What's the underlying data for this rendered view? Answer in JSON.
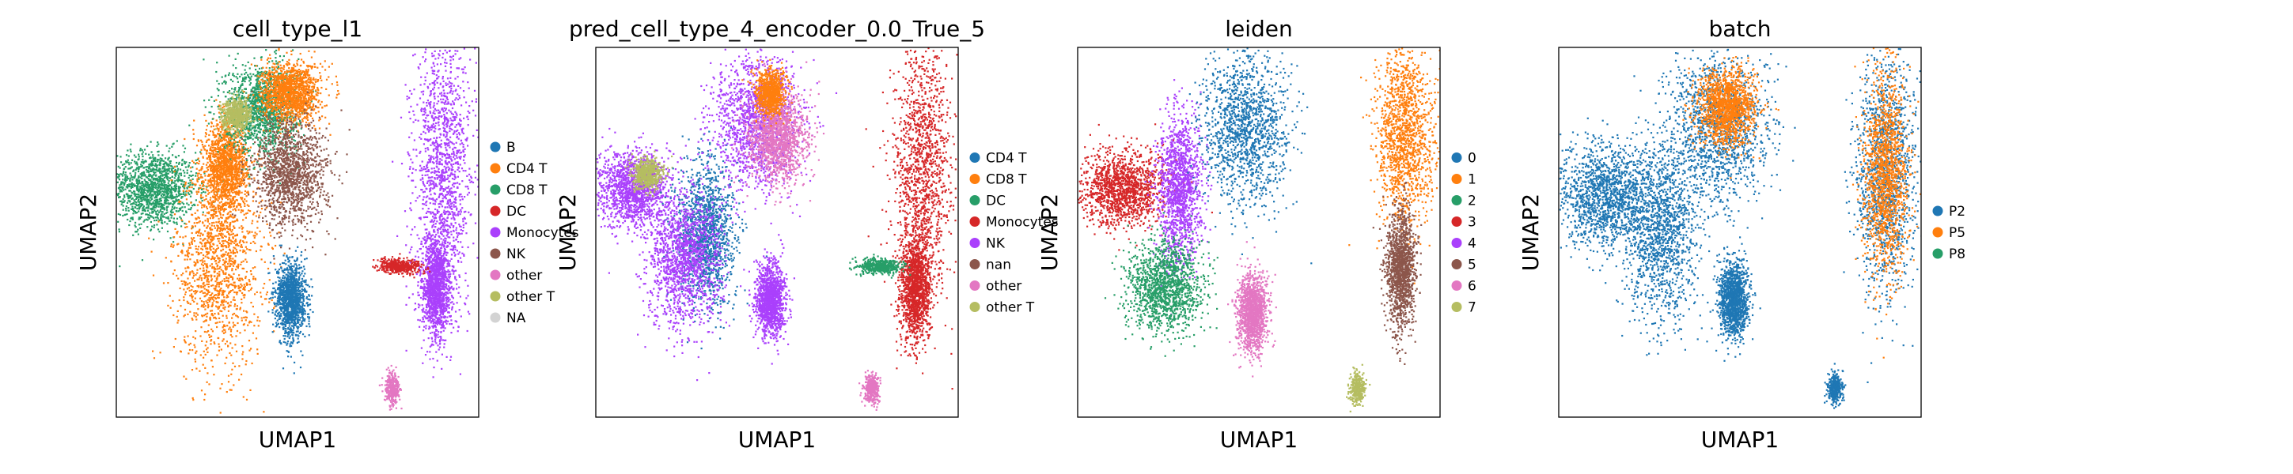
{
  "chart_data": [
    {
      "type": "scatter",
      "title": "cell_type_l1",
      "xlabel": "UMAP1",
      "ylabel": "UMAP2",
      "legend_position": "right",
      "grid": false,
      "ticks": false,
      "legend": [
        {
          "name": "B",
          "color": "#1f77b4"
        },
        {
          "name": "CD4 T",
          "color": "#ff7f0e"
        },
        {
          "name": "CD8 T",
          "color": "#279e68"
        },
        {
          "name": "DC",
          "color": "#d62728"
        },
        {
          "name": "Monocytes",
          "color": "#aa40fc"
        },
        {
          "name": "NK",
          "color": "#8c564b"
        },
        {
          "name": "other",
          "color": "#e377c2"
        },
        {
          "name": "other T",
          "color": "#b5bd61"
        },
        {
          "name": "NA",
          "color": "#d3d3d3"
        }
      ],
      "clusters": [
        {
          "category": "CD8 T",
          "x": 0.1,
          "y": 0.62,
          "sx": 0.06,
          "sy": 0.05
        },
        {
          "category": "CD4 T",
          "x": 0.28,
          "y": 0.42,
          "sx": 0.06,
          "sy": 0.14
        },
        {
          "category": "CD4 T",
          "x": 0.3,
          "y": 0.68,
          "sx": 0.03,
          "sy": 0.06
        },
        {
          "category": "CD8 T",
          "x": 0.4,
          "y": 0.84,
          "sx": 0.05,
          "sy": 0.06
        },
        {
          "category": "CD4 T",
          "x": 0.48,
          "y": 0.88,
          "sx": 0.04,
          "sy": 0.04
        },
        {
          "category": "NK",
          "x": 0.48,
          "y": 0.66,
          "sx": 0.05,
          "sy": 0.07
        },
        {
          "category": "other T",
          "x": 0.33,
          "y": 0.82,
          "sx": 0.02,
          "sy": 0.02
        },
        {
          "category": "B",
          "x": 0.48,
          "y": 0.32,
          "sx": 0.02,
          "sy": 0.05
        },
        {
          "category": "Monocytes",
          "x": 0.9,
          "y": 0.68,
          "sx": 0.04,
          "sy": 0.18
        },
        {
          "category": "Monocytes",
          "x": 0.88,
          "y": 0.35,
          "sx": 0.02,
          "sy": 0.07
        },
        {
          "category": "DC",
          "x": 0.78,
          "y": 0.41,
          "sx": 0.03,
          "sy": 0.01
        },
        {
          "category": "other",
          "x": 0.76,
          "y": 0.08,
          "sx": 0.01,
          "sy": 0.02
        }
      ]
    },
    {
      "type": "scatter",
      "title": "pred_cell_type_4_encoder_0.0_True_5",
      "xlabel": "UMAP1",
      "ylabel": "UMAP2",
      "legend_position": "right",
      "grid": false,
      "ticks": false,
      "legend": [
        {
          "name": "CD4 T",
          "color": "#1f77b4"
        },
        {
          "name": "CD8 T",
          "color": "#ff7f0e"
        },
        {
          "name": "DC",
          "color": "#279e68"
        },
        {
          "name": "Monocytes",
          "color": "#d62728"
        },
        {
          "name": "NK",
          "color": "#aa40fc"
        },
        {
          "name": "nan",
          "color": "#8c564b"
        },
        {
          "name": "other",
          "color": "#e377c2"
        },
        {
          "name": "other T",
          "color": "#b5bd61"
        }
      ],
      "clusters": [
        {
          "category": "NK",
          "x": 0.1,
          "y": 0.62,
          "sx": 0.05,
          "sy": 0.05
        },
        {
          "category": "other T",
          "x": 0.14,
          "y": 0.66,
          "sx": 0.02,
          "sy": 0.02
        },
        {
          "category": "CD4 T",
          "x": 0.3,
          "y": 0.5,
          "sx": 0.04,
          "sy": 0.1
        },
        {
          "category": "NK",
          "x": 0.24,
          "y": 0.42,
          "sx": 0.05,
          "sy": 0.09
        },
        {
          "category": "NK",
          "x": 0.44,
          "y": 0.8,
          "sx": 0.06,
          "sy": 0.09
        },
        {
          "category": "other",
          "x": 0.5,
          "y": 0.76,
          "sx": 0.04,
          "sy": 0.06
        },
        {
          "category": "CD8 T",
          "x": 0.48,
          "y": 0.88,
          "sx": 0.02,
          "sy": 0.03
        },
        {
          "category": "NK",
          "x": 0.48,
          "y": 0.32,
          "sx": 0.02,
          "sy": 0.05
        },
        {
          "category": "Monocytes",
          "x": 0.9,
          "y": 0.66,
          "sx": 0.04,
          "sy": 0.18
        },
        {
          "category": "Monocytes",
          "x": 0.88,
          "y": 0.35,
          "sx": 0.02,
          "sy": 0.07
        },
        {
          "category": "DC",
          "x": 0.78,
          "y": 0.41,
          "sx": 0.03,
          "sy": 0.01
        },
        {
          "category": "other",
          "x": 0.76,
          "y": 0.08,
          "sx": 0.01,
          "sy": 0.02
        }
      ]
    },
    {
      "type": "scatter",
      "title": "leiden",
      "xlabel": "UMAP1",
      "ylabel": "UMAP2",
      "legend_position": "right",
      "grid": false,
      "ticks": false,
      "legend": [
        {
          "name": "0",
          "color": "#1f77b4"
        },
        {
          "name": "1",
          "color": "#ff7f0e"
        },
        {
          "name": "2",
          "color": "#279e68"
        },
        {
          "name": "3",
          "color": "#d62728"
        },
        {
          "name": "4",
          "color": "#aa40fc"
        },
        {
          "name": "5",
          "color": "#8c564b"
        },
        {
          "name": "6",
          "color": "#e377c2"
        },
        {
          "name": "7",
          "color": "#b5bd61"
        }
      ],
      "clusters": [
        {
          "category": "3",
          "x": 0.12,
          "y": 0.62,
          "sx": 0.06,
          "sy": 0.05
        },
        {
          "category": "4",
          "x": 0.28,
          "y": 0.62,
          "sx": 0.03,
          "sy": 0.1
        },
        {
          "category": "2",
          "x": 0.24,
          "y": 0.36,
          "sx": 0.05,
          "sy": 0.06
        },
        {
          "category": "0",
          "x": 0.46,
          "y": 0.78,
          "sx": 0.06,
          "sy": 0.1
        },
        {
          "category": "6",
          "x": 0.48,
          "y": 0.28,
          "sx": 0.02,
          "sy": 0.05
        },
        {
          "category": "1",
          "x": 0.9,
          "y": 0.76,
          "sx": 0.04,
          "sy": 0.12
        },
        {
          "category": "5",
          "x": 0.89,
          "y": 0.4,
          "sx": 0.02,
          "sy": 0.08
        },
        {
          "category": "7",
          "x": 0.77,
          "y": 0.08,
          "sx": 0.01,
          "sy": 0.02
        }
      ]
    },
    {
      "type": "scatter",
      "title": "batch",
      "xlabel": "UMAP1",
      "ylabel": "UMAP2",
      "legend_position": "right",
      "grid": false,
      "ticks": false,
      "legend": [
        {
          "name": "P2",
          "color": "#1f77b4"
        },
        {
          "name": "P5",
          "color": "#ff7f0e"
        },
        {
          "name": "P8",
          "color": "#279e68"
        }
      ],
      "clusters": [
        {
          "category": "P2",
          "x": 0.12,
          "y": 0.6,
          "sx": 0.06,
          "sy": 0.07
        },
        {
          "category": "P2",
          "x": 0.28,
          "y": 0.5,
          "sx": 0.05,
          "sy": 0.12
        },
        {
          "category": "P2",
          "x": 0.44,
          "y": 0.78,
          "sx": 0.07,
          "sy": 0.1
        },
        {
          "category": "P5",
          "x": 0.46,
          "y": 0.84,
          "sx": 0.04,
          "sy": 0.05
        },
        {
          "category": "P2",
          "x": 0.48,
          "y": 0.32,
          "sx": 0.02,
          "sy": 0.05
        },
        {
          "category": "P2",
          "x": 0.9,
          "y": 0.66,
          "sx": 0.04,
          "sy": 0.16
        },
        {
          "category": "P5",
          "x": 0.9,
          "y": 0.66,
          "sx": 0.03,
          "sy": 0.14
        },
        {
          "category": "P2",
          "x": 0.76,
          "y": 0.08,
          "sx": 0.01,
          "sy": 0.02
        }
      ]
    }
  ]
}
